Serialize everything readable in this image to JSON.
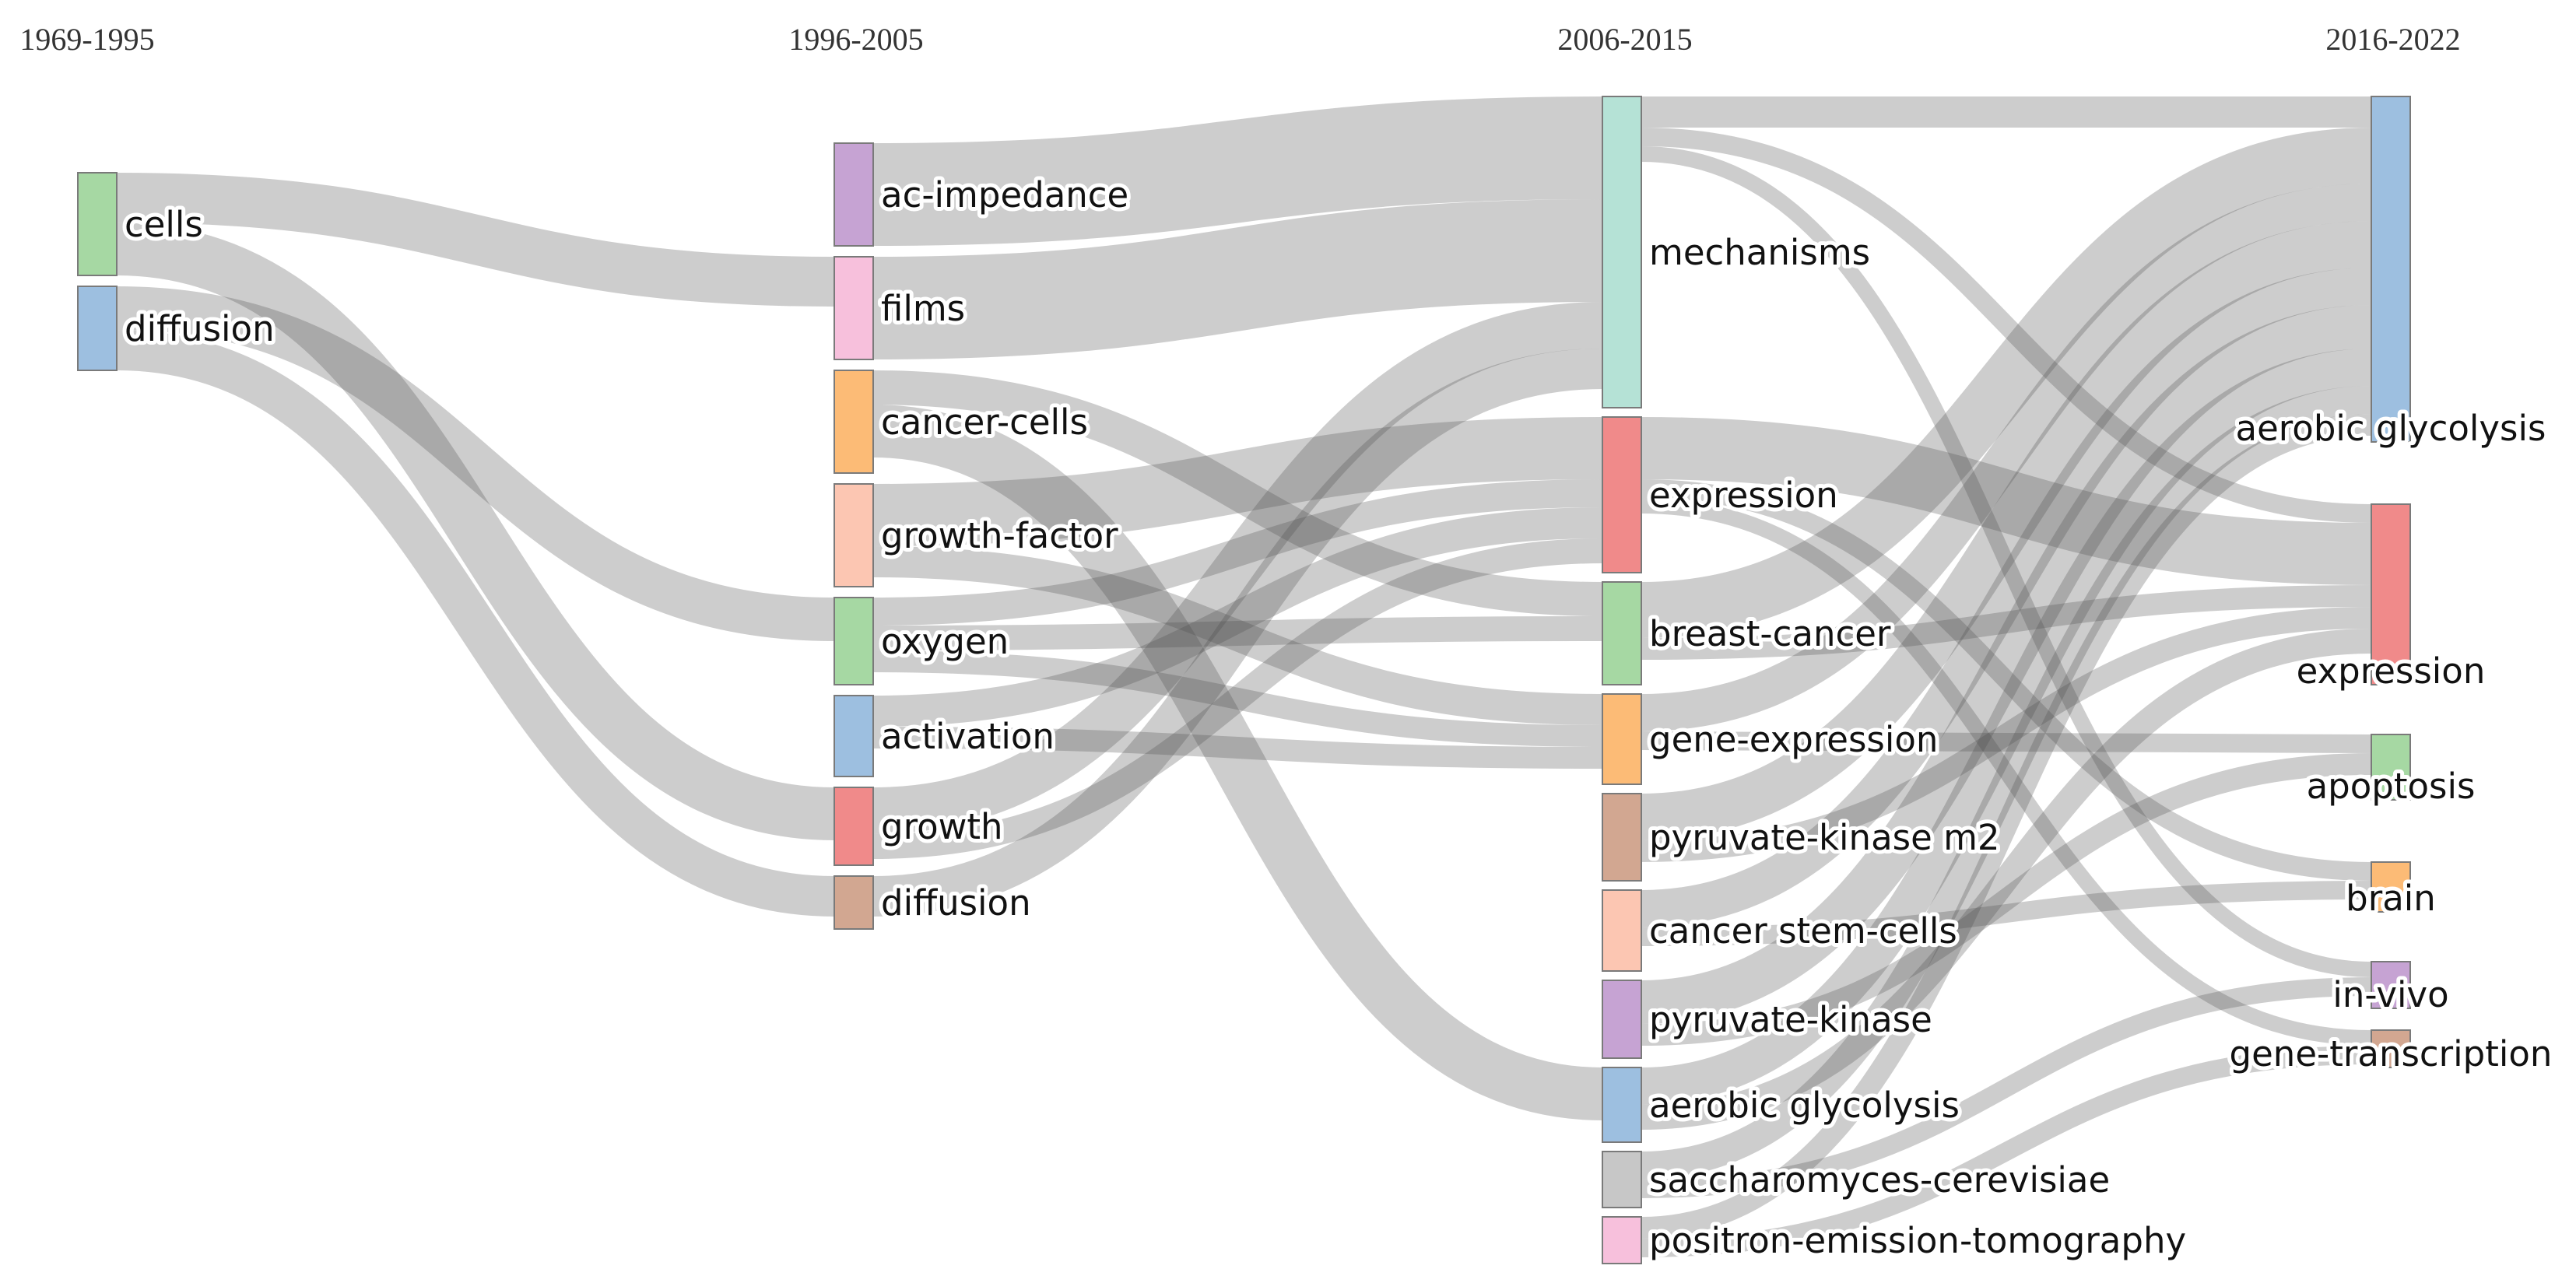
{
  "periods": [
    "1969-1995",
    "1996-2005",
    "2006-2015",
    "2016-2022"
  ],
  "palette": {
    "green": "#a6d8a3",
    "blue": "#9dbfe0",
    "violet": "#c6a3d3",
    "pink": "#f7c0dc",
    "orange": "#fcbb76",
    "peach": "#fcc6b2",
    "red": "#f08a8a",
    "tan": "#d2a791",
    "mint": "#b5e2d6",
    "gray": "#c7c7c7",
    "link": "#4d4d4d"
  },
  "nodes": [
    {
      "id": "c1-cells",
      "label": "cells",
      "period": 0,
      "color": "green",
      "size": 66
    },
    {
      "id": "c1-diffusion",
      "label": "diffusion",
      "period": 0,
      "color": "blue",
      "size": 54
    },
    {
      "id": "c2-ac-impedance",
      "label": "ac-impedance",
      "period": 1,
      "color": "violet",
      "size": 66
    },
    {
      "id": "c2-films",
      "label": "films",
      "period": 1,
      "color": "pink",
      "size": 66
    },
    {
      "id": "c2-cancer-cells",
      "label": "cancer-cells",
      "period": 1,
      "color": "orange",
      "size": 66
    },
    {
      "id": "c2-growth-factor",
      "label": "growth-factor",
      "period": 1,
      "color": "peach",
      "size": 66
    },
    {
      "id": "c2-oxygen",
      "label": "oxygen",
      "period": 1,
      "color": "green",
      "size": 56
    },
    {
      "id": "c2-activation",
      "label": "activation",
      "period": 1,
      "color": "blue",
      "size": 52
    },
    {
      "id": "c2-growth",
      "label": "growth",
      "period": 1,
      "color": "red",
      "size": 50
    },
    {
      "id": "c2-diffusion",
      "label": "diffusion",
      "period": 1,
      "color": "tan",
      "size": 34
    },
    {
      "id": "c3-mechanisms",
      "label": "mechanisms",
      "period": 2,
      "color": "mint",
      "size": 200
    },
    {
      "id": "c3-expression",
      "label": "expression",
      "period": 2,
      "color": "red",
      "size": 100
    },
    {
      "id": "c3-breast-cancer",
      "label": "breast-cancer",
      "period": 2,
      "color": "green",
      "size": 66
    },
    {
      "id": "c3-gene-expression",
      "label": "gene-expression",
      "period": 2,
      "color": "orange",
      "size": 58
    },
    {
      "id": "c3-pyruvate-kinase-m2",
      "label": "pyruvate-kinase m2",
      "period": 2,
      "color": "tan",
      "size": 56
    },
    {
      "id": "c3-cancer-stem-cells",
      "label": "cancer stem-cells",
      "period": 2,
      "color": "peach",
      "size": 52
    },
    {
      "id": "c3-pyruvate-kinase",
      "label": "pyruvate-kinase",
      "period": 2,
      "color": "violet",
      "size": 50
    },
    {
      "id": "c3-aerobic-glycolysis",
      "label": "aerobic glycolysis",
      "period": 2,
      "color": "blue",
      "size": 48
    },
    {
      "id": "c3-saccharomyces",
      "label": "saccharomyces-cerevisiae",
      "period": 2,
      "color": "gray",
      "size": 36
    },
    {
      "id": "c3-pet",
      "label": "positron-emission-tomography",
      "period": 2,
      "color": "pink",
      "size": 30
    },
    {
      "id": "c4-aerobic-glycolysis",
      "label": "aerobic glycolysis",
      "period": 3,
      "color": "blue",
      "size": 222
    },
    {
      "id": "c4-expression",
      "label": "expression",
      "period": 3,
      "color": "red",
      "size": 116
    },
    {
      "id": "c4-apoptosis",
      "label": "apoptosis",
      "period": 3,
      "color": "green",
      "size": 42
    },
    {
      "id": "c4-brain",
      "label": "brain",
      "period": 3,
      "color": "orange",
      "size": 32
    },
    {
      "id": "c4-in-vivo",
      "label": "in-vivo",
      "period": 3,
      "color": "violet",
      "size": 30
    },
    {
      "id": "c4-gene-transcription",
      "label": "gene-transcription",
      "period": 3,
      "color": "tan",
      "size": 24
    }
  ],
  "links": [
    {
      "source": "c1-cells",
      "target": "c2-films",
      "value": 32
    },
    {
      "source": "c1-cells",
      "target": "c2-growth",
      "value": 34
    },
    {
      "source": "c1-diffusion",
      "target": "c2-oxygen",
      "value": 28
    },
    {
      "source": "c1-diffusion",
      "target": "c2-diffusion",
      "value": 26
    },
    {
      "source": "c2-ac-impedance",
      "target": "c3-mechanisms",
      "value": 66
    },
    {
      "source": "c2-films",
      "target": "c3-mechanisms",
      "value": 66
    },
    {
      "source": "c2-cancer-cells",
      "target": "c3-breast-cancer",
      "value": 22
    },
    {
      "source": "c2-cancer-cells",
      "target": "c3-aerobic-glycolysis",
      "value": 34
    },
    {
      "source": "c2-growth-factor",
      "target": "c3-expression",
      "value": 40
    },
    {
      "source": "c2-growth-factor",
      "target": "c3-gene-expression",
      "value": 20
    },
    {
      "source": "c2-oxygen",
      "target": "c3-expression",
      "value": 18
    },
    {
      "source": "c2-oxygen",
      "target": "c3-breast-cancer",
      "value": 16
    },
    {
      "source": "c2-oxygen",
      "target": "c3-gene-expression",
      "value": 14
    },
    {
      "source": "c2-activation",
      "target": "c3-expression",
      "value": 20
    },
    {
      "source": "c2-activation",
      "target": "c3-gene-expression",
      "value": 14
    },
    {
      "source": "c2-growth",
      "target": "c3-mechanisms",
      "value": 30
    },
    {
      "source": "c2-growth",
      "target": "c3-expression",
      "value": 16
    },
    {
      "source": "c2-diffusion",
      "target": "c3-mechanisms",
      "value": 26
    },
    {
      "source": "c3-mechanisms",
      "target": "c4-aerobic-glycolysis",
      "value": 20
    },
    {
      "source": "c3-mechanisms",
      "target": "c4-expression",
      "value": 12
    },
    {
      "source": "c3-mechanisms",
      "target": "c4-in-vivo",
      "value": 10
    },
    {
      "source": "c3-expression",
      "target": "c4-expression",
      "value": 40
    },
    {
      "source": "c3-expression",
      "target": "c4-brain",
      "value": 12
    },
    {
      "source": "c3-expression",
      "target": "c4-gene-transcription",
      "value": 10
    },
    {
      "source": "c3-breast-cancer",
      "target": "c4-aerobic-glycolysis",
      "value": 36
    },
    {
      "source": "c3-breast-cancer",
      "target": "c4-expression",
      "value": 14
    },
    {
      "source": "c3-gene-expression",
      "target": "c4-aerobic-glycolysis",
      "value": 24
    },
    {
      "source": "c3-gene-expression",
      "target": "c4-apoptosis",
      "value": 12
    },
    {
      "source": "c3-pyruvate-kinase-m2",
      "target": "c4-aerobic-glycolysis",
      "value": 30
    },
    {
      "source": "c3-pyruvate-kinase-m2",
      "target": "c4-expression",
      "value": 14
    },
    {
      "source": "c3-cancer-stem-cells",
      "target": "c4-aerobic-glycolysis",
      "value": 24
    },
    {
      "source": "c3-cancer-stem-cells",
      "target": "c4-brain",
      "value": 12
    },
    {
      "source": "c3-pyruvate-kinase",
      "target": "c4-aerobic-glycolysis",
      "value": 28
    },
    {
      "source": "c3-pyruvate-kinase",
      "target": "c4-apoptosis",
      "value": 14
    },
    {
      "source": "c3-aerobic-glycolysis",
      "target": "c4-aerobic-glycolysis",
      "value": 24
    },
    {
      "source": "c3-aerobic-glycolysis",
      "target": "c4-expression",
      "value": 16
    },
    {
      "source": "c3-saccharomyces",
      "target": "c4-aerobic-glycolysis",
      "value": 18
    },
    {
      "source": "c3-saccharomyces",
      "target": "c4-in-vivo",
      "value": 12
    },
    {
      "source": "c3-pet",
      "target": "c4-aerobic-glycolysis",
      "value": 14
    },
    {
      "source": "c3-pet",
      "target": "c4-gene-transcription",
      "value": 12
    }
  ]
}
